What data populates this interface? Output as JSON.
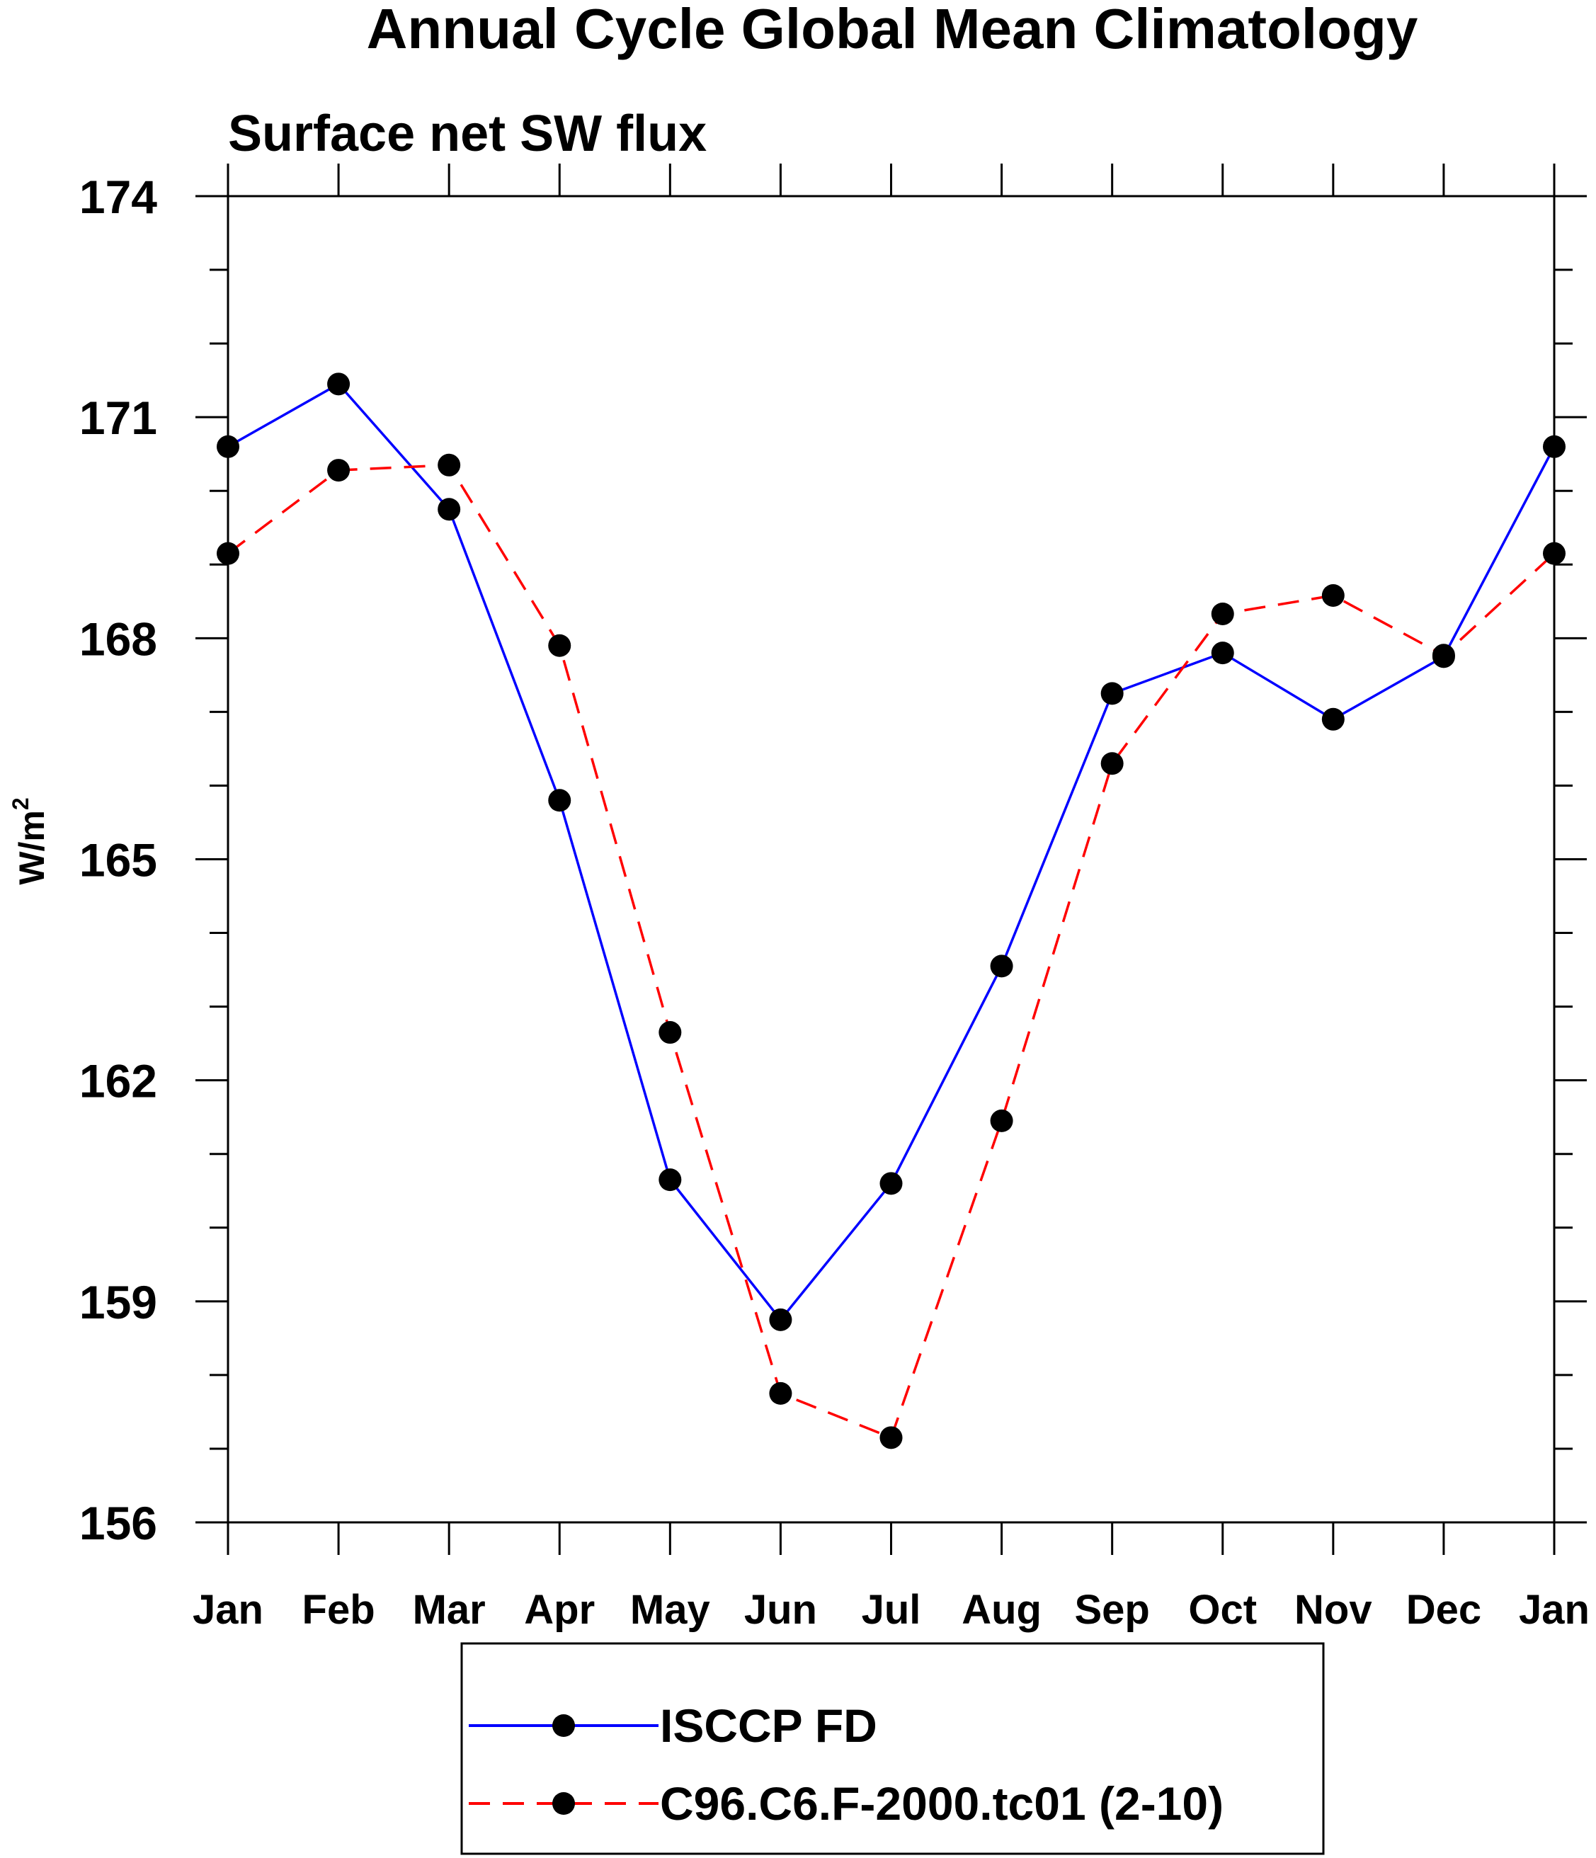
{
  "chart_data": {
    "type": "line",
    "title": "Annual Cycle Global Mean Climatology",
    "subtitle": "Surface net SW flux",
    "xlabel": "",
    "ylabel": "W/m",
    "ylabel_superscript": "2",
    "categories": [
      "Jan",
      "Feb",
      "Mar",
      "Apr",
      "May",
      "Jun",
      "Jul",
      "Aug",
      "Sep",
      "Oct",
      "Nov",
      "Dec",
      "Jan"
    ],
    "ylim": [
      156,
      174
    ],
    "yticks": [
      156,
      159,
      162,
      165,
      168,
      171,
      174
    ],
    "y_minor_step": 1,
    "series": [
      {
        "name": "ISCCP FD",
        "color": "#0000ff",
        "dash": "solid",
        "values": [
          170.6,
          171.45,
          169.75,
          165.8,
          160.65,
          158.75,
          160.6,
          163.55,
          167.25,
          167.8,
          166.9,
          167.75,
          170.6
        ]
      },
      {
        "name": "C96.C6.F-2000.tc01 (2-10)",
        "color": "#ff0000",
        "dash": "dashed",
        "values": [
          169.15,
          170.28,
          170.35,
          167.9,
          162.65,
          157.75,
          157.15,
          161.45,
          166.3,
          168.33,
          168.58,
          167.77,
          169.15
        ]
      }
    ],
    "legend_position": "bottom-center",
    "grid": false
  }
}
